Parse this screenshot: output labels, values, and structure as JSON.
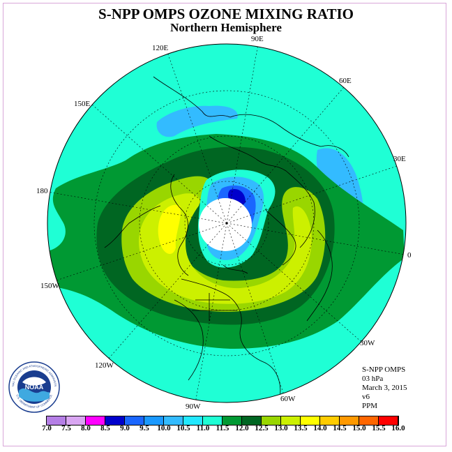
{
  "title": "S-NPP OMPS OZONE MIXING RATIO",
  "subtitle": "Northern Hemisphere",
  "longitudes": {
    "e90": "90E",
    "e60": "60E",
    "e30": "30E",
    "zero": "0",
    "w30": "30W",
    "w60": "60W",
    "w90": "90W",
    "w120": "120W",
    "w150": "150W",
    "deg180": "180",
    "e150": "150E",
    "e120": "120E"
  },
  "info": {
    "instrument": "S-NPP OMPS",
    "level": "03 hPa",
    "date": "March 3, 2015",
    "version": "v6",
    "units": "PPM"
  },
  "logo": {
    "text": "NOAA",
    "ring_top": "NATIONAL OCEANIC AND ATMOSPHERIC ADMINISTRATION",
    "ring_bottom": "U.S. DEPARTMENT OF COMMERCE"
  },
  "colorbar": {
    "ticks": [
      "7.0",
      "7.5",
      "8.0",
      "8.5",
      "9.0",
      "9.5",
      "10.0",
      "10.5",
      "11.0",
      "11.5",
      "12.0",
      "12.5",
      "13.0",
      "13.5",
      "14.0",
      "14.5",
      "15.0",
      "15.5",
      "16.0"
    ],
    "colors": [
      "#b57fe6",
      "#d9a6f2",
      "#ff00ff",
      "#0000cc",
      "#1a66ff",
      "#1a99ff",
      "#33bbff",
      "#22e8ff",
      "#1fffd5",
      "#009933",
      "#006622",
      "#99d600",
      "#ccf000",
      "#ffff00",
      "#ffcc00",
      "#ff9900",
      "#ff6600",
      "#ff0000",
      "#8b4513"
    ]
  },
  "map_colors": {
    "outer": "#1fffd5",
    "light_blue": "#33bbff",
    "green": "#009933",
    "dark_green": "#006622",
    "yellow_green": "#99d600",
    "lime": "#ccf000",
    "yellow": "#ffff00",
    "blue": "#1a66ff",
    "dark_blue": "#0000cc",
    "pole_hole": "#ffffff"
  }
}
